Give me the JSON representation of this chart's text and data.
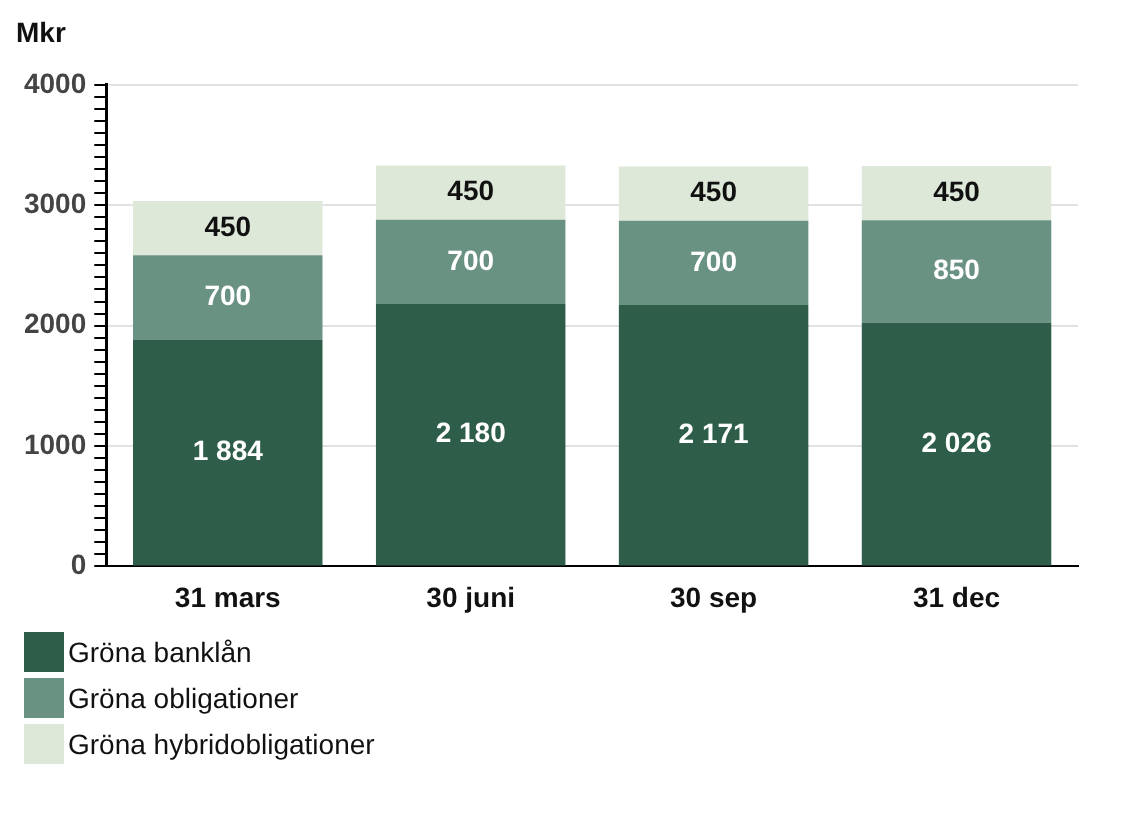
{
  "chart_data": {
    "type": "bar",
    "ylabel": "Mkr",
    "stacked": true,
    "categories": [
      "31 mars",
      "30 juni",
      "30 sep",
      "31 dec"
    ],
    "series": [
      {
        "name": "Gröna banklån",
        "color": "#2e5e4a",
        "values": [
          1884,
          2180,
          2171,
          2026
        ],
        "value_labels": [
          "1 884",
          "2 180",
          "2 171",
          "2 026"
        ]
      },
      {
        "name": "Gröna obligationer",
        "color": "#6a9283",
        "values": [
          700,
          700,
          700,
          850
        ],
        "value_labels": [
          "700",
          "700",
          "700",
          "850"
        ]
      },
      {
        "name": "Gröna hybridobligationer",
        "color": "#dde8d8",
        "values": [
          450,
          450,
          450,
          450
        ],
        "value_labels": [
          "450",
          "450",
          "450",
          "450"
        ]
      }
    ],
    "ylim": [
      0,
      4000
    ],
    "yticks": [
      0,
      {
        "value": 100,
        "label": null
      },
      {
        "value": 200,
        "label": null
      },
      {
        "value": 300,
        "label": null
      },
      {
        "value": 400,
        "label": null
      },
      {
        "value": 500,
        "label": null
      },
      {
        "value": 600,
        "label": null
      },
      {
        "value": 700,
        "label": null
      },
      {
        "value": 800,
        "label": null
      },
      {
        "value": 900,
        "label": null
      },
      1000,
      {
        "value": 1100,
        "label": null
      },
      {
        "value": 1200,
        "label": null
      },
      {
        "value": 1300,
        "label": null
      },
      {
        "value": 1400,
        "label": null
      },
      {
        "value": 1500,
        "label": null
      },
      {
        "value": 1600,
        "label": null
      },
      {
        "value": 1700,
        "label": null
      },
      {
        "value": 1800,
        "label": null
      },
      {
        "value": 1900,
        "label": null
      },
      2000,
      {
        "value": 2100,
        "label": null
      },
      {
        "value": 2200,
        "label": null
      },
      {
        "value": 2300,
        "label": null
      },
      {
        "value": 2400,
        "label": null
      },
      {
        "value": 2500,
        "label": null
      },
      {
        "value": 2600,
        "label": null
      },
      {
        "value": 2700,
        "label": null
      },
      {
        "value": 2800,
        "label": null
      },
      {
        "value": 2900,
        "label": null
      },
      3000,
      {
        "value": 3100,
        "label": null
      },
      {
        "value": 3200,
        "label": null
      },
      {
        "value": 3300,
        "label": null
      },
      {
        "value": 3400,
        "label": null
      },
      {
        "value": 3500,
        "label": null
      },
      {
        "value": 3600,
        "label": null
      },
      {
        "value": 3700,
        "label": null
      },
      {
        "value": 3800,
        "label": null
      },
      {
        "value": 3900,
        "label": null
      },
      4000
    ],
    "grid": "y",
    "legend": "bottom left"
  }
}
